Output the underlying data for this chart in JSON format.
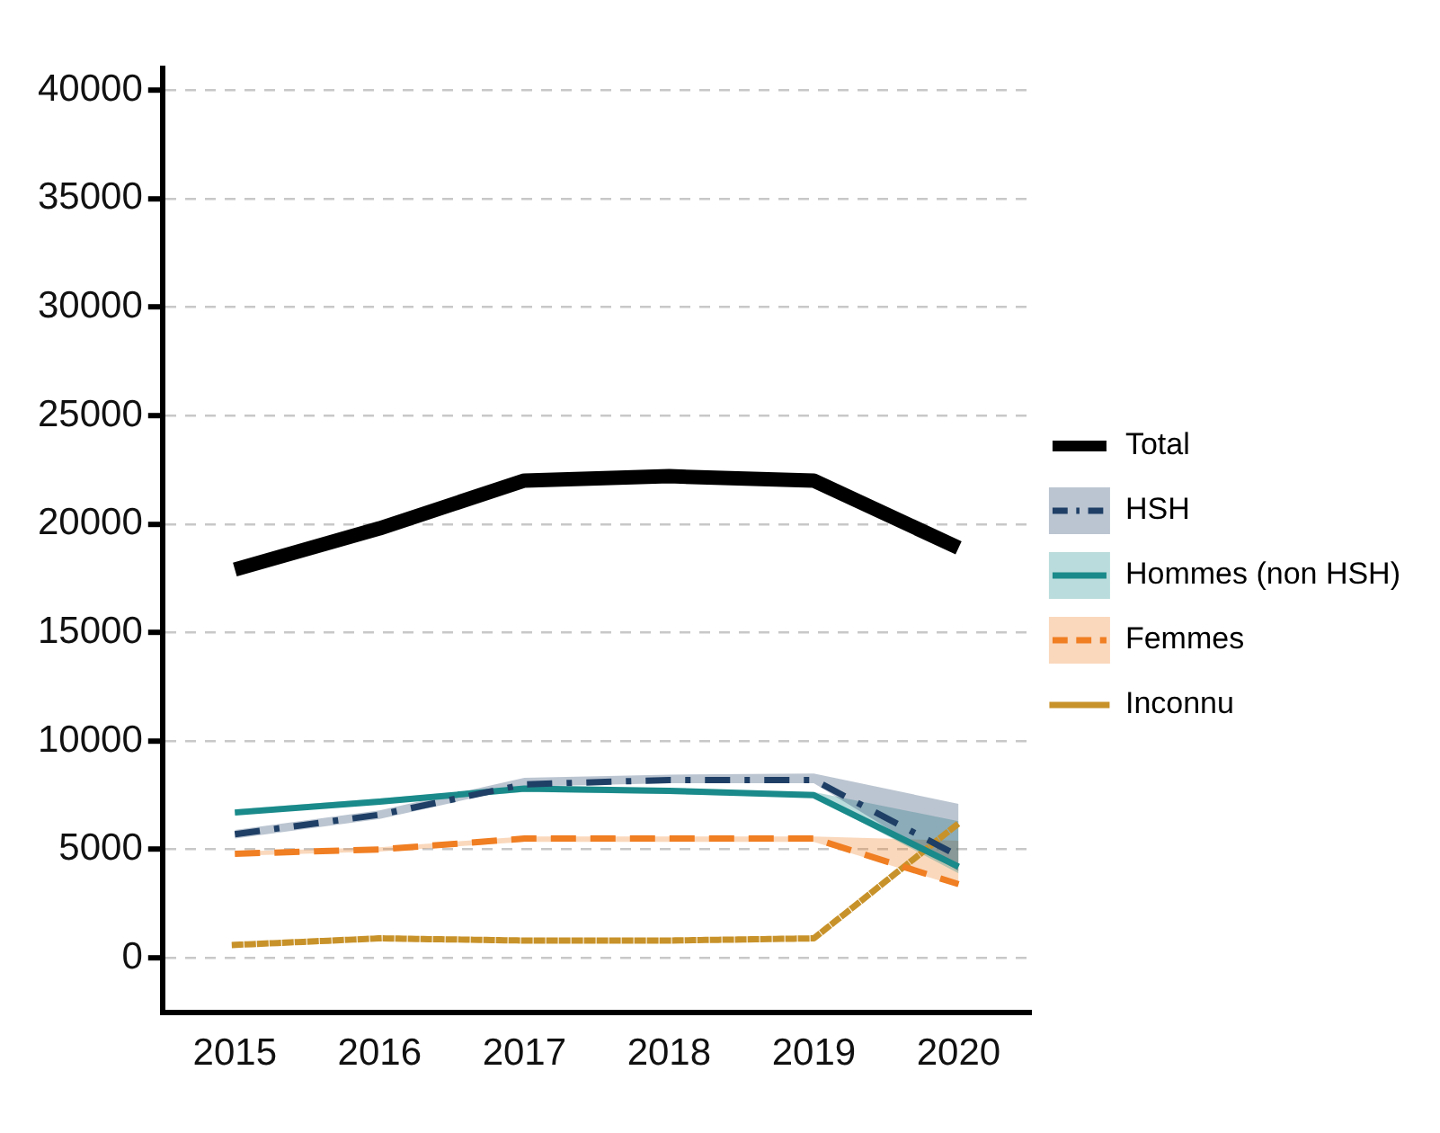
{
  "chart_data": {
    "type": "line",
    "categories": [
      "2015",
      "2016",
      "2017",
      "2018",
      "2019",
      "2020"
    ],
    "series": [
      {
        "name": "Total",
        "color": "#000000",
        "line_style": "solid",
        "values": [
          17900,
          19800,
          22000,
          22200,
          22000,
          18900
        ]
      },
      {
        "name": "HSH",
        "color": "#1f3f66",
        "line_style": "dashdot",
        "values": [
          5700,
          6600,
          8000,
          8200,
          8200,
          4700
        ],
        "lower": [
          5500,
          6400,
          7900,
          8050,
          8050,
          4000
        ],
        "upper": [
          5900,
          6800,
          8300,
          8450,
          8500,
          7100
        ]
      },
      {
        "name": "Hommes (non HSH)",
        "color": "#1a8a8a",
        "line_style": "solid",
        "values": [
          6700,
          7200,
          7800,
          7700,
          7500,
          4200
        ],
        "lower": [
          6600,
          7100,
          7650,
          7550,
          7400,
          3900
        ],
        "upper": [
          6850,
          7350,
          7900,
          7750,
          7650,
          6300
        ]
      },
      {
        "name": "Femmes",
        "color": "#f07e22",
        "line_style": "dashed",
        "values": [
          4800,
          5000,
          5500,
          5500,
          5500,
          3400
        ],
        "lower": [
          4700,
          4900,
          5350,
          5350,
          5350,
          3300
        ],
        "upper": [
          4900,
          5100,
          5600,
          5600,
          5600,
          5400
        ]
      },
      {
        "name": "Inconnu",
        "color": "#c8922a",
        "line_style": "dotted",
        "values": [
          600,
          900,
          800,
          800,
          900,
          6200
        ]
      }
    ],
    "ylim": [
      -2500,
      41000
    ],
    "yticks": [
      0,
      5000,
      10000,
      15000,
      20000,
      25000,
      30000,
      35000,
      40000
    ],
    "grid": "y",
    "legend": "right",
    "marker": "none"
  }
}
